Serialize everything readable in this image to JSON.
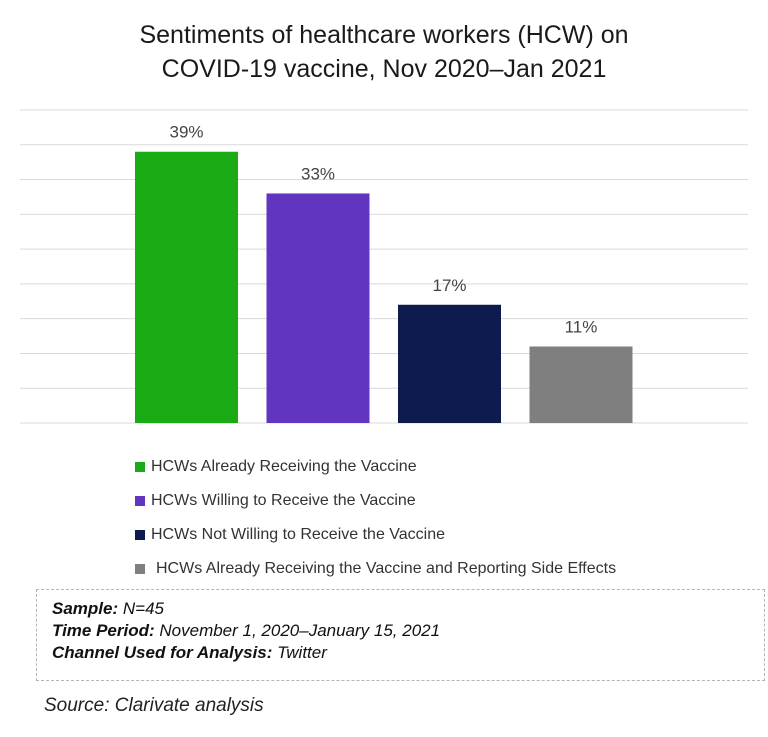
{
  "chart_data": {
    "type": "bar",
    "title_lines": [
      "Sentiments of healthcare workers (HCW) on",
      "COVID-19 vaccine, Nov 2020–Jan 2021"
    ],
    "categories": [
      "HCWs Already Receiving the Vaccine",
      "HCWs Willing to Receive the Vaccine",
      "HCWs Not Willing to Receive the Vaccine",
      "HCWs Already Receiving the Vaccine and Reporting Side Effects"
    ],
    "values": [
      39,
      33,
      17,
      11
    ],
    "data_labels": [
      "39%",
      "33%",
      "17%",
      "11%"
    ],
    "colors": [
      "#1aab14",
      "#6135c0",
      "#0e1b4e",
      "#7f7f7f"
    ],
    "ylim": [
      0,
      45
    ],
    "grid": true,
    "legend_position": "bottom",
    "xlabel": "",
    "ylabel": ""
  },
  "info": {
    "sample_label": "Sample:",
    "sample_value": " N=45",
    "period_label": "Time Period:",
    "period_value": " November 1, 2020–January 15, 2021",
    "channel_label": "Channel Used for Analysis:",
    "channel_value": " Twitter"
  },
  "source": "Source: Clarivate analysis"
}
